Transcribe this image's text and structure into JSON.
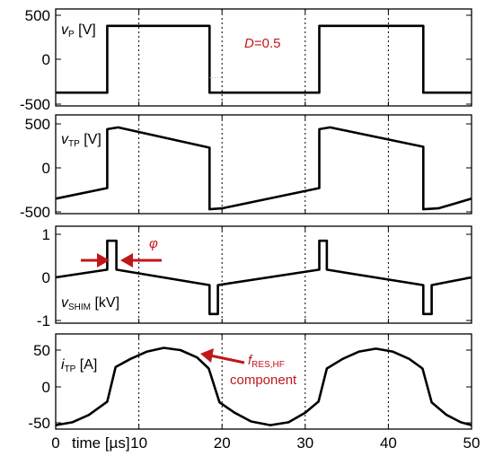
{
  "chart_data": [
    {
      "type": "line",
      "xlim": [
        0,
        50
      ],
      "ylim": [
        -500,
        500
      ],
      "yticks": [
        "500",
        "0",
        "-500"
      ],
      "ylabel_main": "v",
      "ylabel_sub": "P",
      "ylabel_unit": " [V]",
      "grid": "dotted vertical at x=10,20,30,40",
      "annotation": {
        "italic": "D",
        "rest": "=0.5"
      },
      "faint_mark": "·····",
      "series": [
        {
          "points": [
            [
              0,
              -380
            ],
            [
              6.2,
              -380
            ],
            [
              6.2,
              380
            ],
            [
              18.5,
              380
            ],
            [
              18.5,
              -380
            ],
            [
              31.7,
              -380
            ],
            [
              31.7,
              380
            ],
            [
              44.2,
              380
            ],
            [
              44.2,
              -380
            ],
            [
              50,
              -380
            ]
          ]
        }
      ]
    },
    {
      "type": "line",
      "xlim": [
        0,
        50
      ],
      "ylim": [
        -500,
        500
      ],
      "yticks": [
        "500",
        "0",
        "-500"
      ],
      "ylabel_main": "v",
      "ylabel_sub": "TP",
      "ylabel_unit": " [V]",
      "grid": "dotted vertical at x=10,20,30,40",
      "series": [
        {
          "points": [
            [
              0,
              -350
            ],
            [
              6.2,
              -230
            ],
            [
              6.2,
              440
            ],
            [
              7.5,
              460
            ],
            [
              18.5,
              230
            ],
            [
              18.5,
              -470
            ],
            [
              20,
              -460
            ],
            [
              31.7,
              -230
            ],
            [
              31.7,
              440
            ],
            [
              33,
              460
            ],
            [
              44.2,
              240
            ],
            [
              44.2,
              -470
            ],
            [
              46,
              -460
            ],
            [
              50,
              -350
            ]
          ]
        }
      ]
    },
    {
      "type": "line",
      "xlim": [
        0,
        50
      ],
      "ylim": [
        -1,
        1
      ],
      "yticks": [
        "1",
        "0",
        "-1"
      ],
      "ylabel_main": "v",
      "ylabel_sub": "SHIM",
      "ylabel_unit": " [kV]",
      "grid": "dotted vertical at x=10,20,30,40",
      "annotation": {
        "italic": "φ"
      },
      "series": [
        {
          "points": [
            [
              0,
              0
            ],
            [
              6.2,
              0.18
            ],
            [
              6.2,
              0.85
            ],
            [
              7.3,
              0.85
            ],
            [
              7.3,
              0.18
            ],
            [
              18.5,
              -0.18
            ],
            [
              18.5,
              -0.85
            ],
            [
              19.5,
              -0.85
            ],
            [
              19.5,
              -0.18
            ],
            [
              31.7,
              0.18
            ],
            [
              31.7,
              0.85
            ],
            [
              32.6,
              0.85
            ],
            [
              32.6,
              0.18
            ],
            [
              44.2,
              -0.18
            ],
            [
              44.2,
              -0.85
            ],
            [
              45.2,
              -0.85
            ],
            [
              45.2,
              -0.18
            ],
            [
              50,
              0
            ]
          ]
        }
      ]
    },
    {
      "type": "line",
      "xlim": [
        0,
        50
      ],
      "ylim": [
        -60,
        60
      ],
      "yticks": [
        "50",
        "0",
        "-50"
      ],
      "ylabel_main": "i",
      "ylabel_sub": "TP",
      "ylabel_unit": " [A]",
      "xlabel": "time [µs]",
      "xticks": [
        "0",
        "10",
        "20",
        "30",
        "40",
        "50"
      ],
      "grid": "dotted vertical at x=10,20,30,40",
      "annotation": {
        "italic": "f",
        "sub": "RES,HF",
        "line2": "component"
      },
      "series": [
        {
          "points": [
            [
              0,
              -52
            ],
            [
              2,
              -48
            ],
            [
              4,
              -38
            ],
            [
              6.2,
              -20
            ],
            [
              7.2,
              27
            ],
            [
              9,
              38
            ],
            [
              11,
              48
            ],
            [
              13,
              53
            ],
            [
              15,
              50
            ],
            [
              17,
              40
            ],
            [
              18.4,
              25
            ],
            [
              19.7,
              -21
            ],
            [
              21.5,
              -35
            ],
            [
              23.5,
              -47
            ],
            [
              25.8,
              -52
            ],
            [
              28,
              -48
            ],
            [
              30,
              -35
            ],
            [
              31.6,
              -20
            ],
            [
              32.6,
              25
            ],
            [
              34.5,
              38
            ],
            [
              36.5,
              48
            ],
            [
              38.5,
              52
            ],
            [
              40.5,
              48
            ],
            [
              42.5,
              38
            ],
            [
              44.1,
              25
            ],
            [
              45.2,
              -21
            ],
            [
              47,
              -38
            ],
            [
              48.7,
              -48
            ],
            [
              50,
              -52
            ]
          ]
        }
      ]
    }
  ],
  "colors": {
    "trace": "#000000",
    "annotation": "#c0171b",
    "grid": "#000000"
  }
}
